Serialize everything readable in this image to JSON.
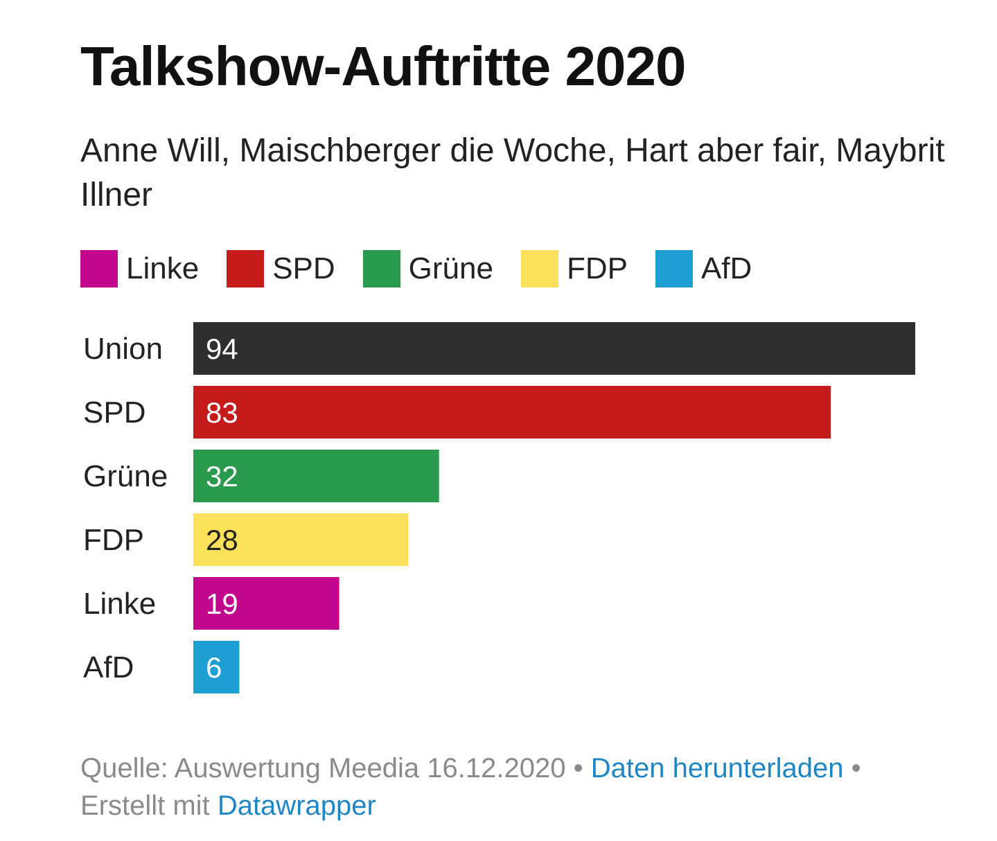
{
  "chart_data": {
    "type": "bar",
    "orientation": "horizontal",
    "title": "Talkshow-Auftritte 2020",
    "subtitle": "Anne Will, Maischberger die Woche, Hart aber fair, Maybrit Illner",
    "categories": [
      "Union",
      "SPD",
      "Grüne",
      "FDP",
      "Linke",
      "AfD"
    ],
    "values": [
      94,
      83,
      32,
      28,
      19,
      6
    ],
    "value_labels": [
      "94",
      "83",
      "32",
      "28",
      "19",
      "6"
    ],
    "bar_colors": [
      "#2f2f2f",
      "#c51b1b",
      "#2a9a4e",
      "#fbe05a",
      "#c2078e",
      "#1d9fd3"
    ],
    "label_colors": [
      "#ffffff",
      "#ffffff",
      "#ffffff",
      "#222222",
      "#ffffff",
      "#ffffff"
    ],
    "xlim": [
      0,
      94
    ],
    "xlabel": "",
    "ylabel": "",
    "grid": false,
    "legend": {
      "placement": "top",
      "items": [
        {
          "label": "Linke",
          "color": "#c2078e"
        },
        {
          "label": "SPD",
          "color": "#c51b1b"
        },
        {
          "label": "Grüne",
          "color": "#2a9a4e"
        },
        {
          "label": "FDP",
          "color": "#fbe05a"
        },
        {
          "label": "AfD",
          "color": "#1d9fd3"
        }
      ]
    }
  },
  "footer": {
    "source_text": "Quelle: Auswertung Meedia 16.12.2020",
    "separator": "•",
    "download_link": "Daten herunterladen",
    "created_with": "Erstellt mit",
    "tool_link": "Datawrapper"
  }
}
